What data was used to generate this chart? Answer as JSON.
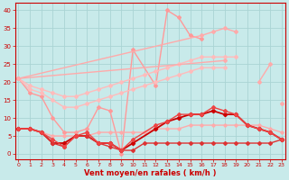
{
  "background_color": "#c8eaea",
  "grid_color": "#aad4d4",
  "xlabel": "Vent moyen/en rafales ( km/h )",
  "x_ticks": [
    0,
    1,
    2,
    3,
    4,
    5,
    6,
    7,
    8,
    9,
    10,
    11,
    12,
    13,
    14,
    15,
    16,
    17,
    18,
    19,
    20,
    21,
    22,
    23
  ],
  "y_ticks": [
    0,
    5,
    10,
    15,
    20,
    25,
    30,
    35,
    40
  ],
  "xlim": [
    -0.3,
    23.3
  ],
  "ylim": [
    -1.5,
    42
  ],
  "lines": [
    {
      "x": [
        0,
        1,
        2,
        3,
        4,
        5,
        6,
        7,
        8,
        9,
        10,
        12,
        13,
        14,
        15,
        16
      ],
      "y": [
        21,
        17,
        16,
        10,
        6,
        6,
        7,
        13,
        12,
        0,
        29,
        19,
        40,
        38,
        33,
        32
      ],
      "color": "#ff9999",
      "lw": 1.0,
      "marker": "D",
      "ms": 2.0
    },
    {
      "x": [
        0,
        1,
        2,
        3,
        4,
        5,
        6,
        7,
        8,
        9,
        10,
        11,
        12,
        13,
        14,
        15,
        16,
        17,
        18,
        19,
        20,
        21,
        22,
        23
      ],
      "y": [
        21,
        19,
        18,
        17,
        16,
        16,
        17,
        18,
        19,
        20,
        21,
        22,
        23,
        24,
        25,
        26,
        27,
        27,
        27,
        27,
        null,
        null,
        null,
        null
      ],
      "color": "#ffbbbb",
      "lw": 1.0,
      "marker": "D",
      "ms": 2.0
    },
    {
      "x": [
        0,
        1,
        2,
        3,
        4,
        5,
        6,
        7,
        8,
        9,
        10,
        11,
        12,
        13,
        14,
        15,
        16,
        17,
        18,
        19,
        20,
        21,
        22,
        23
      ],
      "y": [
        21,
        18,
        17,
        15,
        13,
        13,
        14,
        15,
        16,
        17,
        18,
        19,
        20,
        21,
        22,
        23,
        24,
        24,
        24,
        null,
        null,
        null,
        null,
        null
      ],
      "color": "#ffbbbb",
      "lw": 1.0,
      "marker": "D",
      "ms": 2.0
    },
    {
      "x": [
        0,
        16,
        17,
        18,
        19,
        20,
        21,
        22,
        23
      ],
      "y": [
        21,
        33,
        34,
        35,
        34,
        null,
        null,
        null,
        14
      ],
      "color": "#ffaaaa",
      "lw": 1.0,
      "marker": "D",
      "ms": 2.0
    },
    {
      "x": [
        0,
        18,
        20,
        21,
        22,
        23
      ],
      "y": [
        21,
        26,
        null,
        20,
        25,
        null
      ],
      "color": "#ffaaaa",
      "lw": 1.0,
      "marker": "D",
      "ms": 2.0
    },
    {
      "x": [
        0,
        1,
        2,
        3,
        4,
        5,
        6,
        7,
        8,
        9,
        10,
        11,
        12,
        13,
        14,
        15,
        16,
        17,
        18,
        19,
        20,
        21,
        22,
        23
      ],
      "y": [
        7,
        7,
        6,
        5,
        5,
        5,
        5,
        6,
        6,
        6,
        6,
        6,
        7,
        7,
        7,
        8,
        8,
        8,
        8,
        8,
        8,
        8,
        7,
        6
      ],
      "color": "#ffaaaa",
      "lw": 1.0,
      "marker": "D",
      "ms": 1.8
    },
    {
      "x": [
        0,
        1,
        2,
        3,
        4,
        5,
        6,
        7,
        8,
        9,
        10,
        12,
        13,
        14,
        15,
        16,
        17,
        18,
        19,
        20,
        21,
        22,
        23
      ],
      "y": [
        7,
        7,
        6,
        3,
        3,
        5,
        5,
        3,
        3,
        1,
        3,
        7,
        9,
        10,
        11,
        11,
        12,
        11,
        11,
        8,
        7,
        6,
        4
      ],
      "color": "#cc0000",
      "lw": 1.3,
      "marker": "D",
      "ms": 2.2
    },
    {
      "x": [
        0,
        1,
        2,
        3,
        4,
        5,
        6,
        7,
        8,
        9,
        10,
        11,
        12,
        13,
        14,
        15,
        16,
        17,
        18,
        19,
        20,
        21,
        22,
        23
      ],
      "y": [
        7,
        7,
        6,
        3,
        2,
        5,
        5,
        3,
        2,
        1,
        1,
        3,
        3,
        3,
        3,
        3,
        3,
        3,
        3,
        3,
        3,
        3,
        3,
        4
      ],
      "color": "#dd3333",
      "lw": 1.0,
      "marker": "D",
      "ms": 2.0
    },
    {
      "x": [
        0,
        1,
        2,
        3,
        4,
        5,
        6,
        7,
        8,
        9,
        10,
        12,
        13,
        14,
        15,
        16,
        17,
        18,
        19,
        20,
        21,
        22,
        23
      ],
      "y": [
        7,
        7,
        6,
        4,
        2,
        5,
        6,
        3,
        3,
        1,
        4,
        8,
        9,
        11,
        11,
        11,
        13,
        12,
        11,
        8,
        7,
        6,
        4
      ],
      "color": "#ee4444",
      "lw": 1.0,
      "marker": "D",
      "ms": 2.0
    }
  ]
}
